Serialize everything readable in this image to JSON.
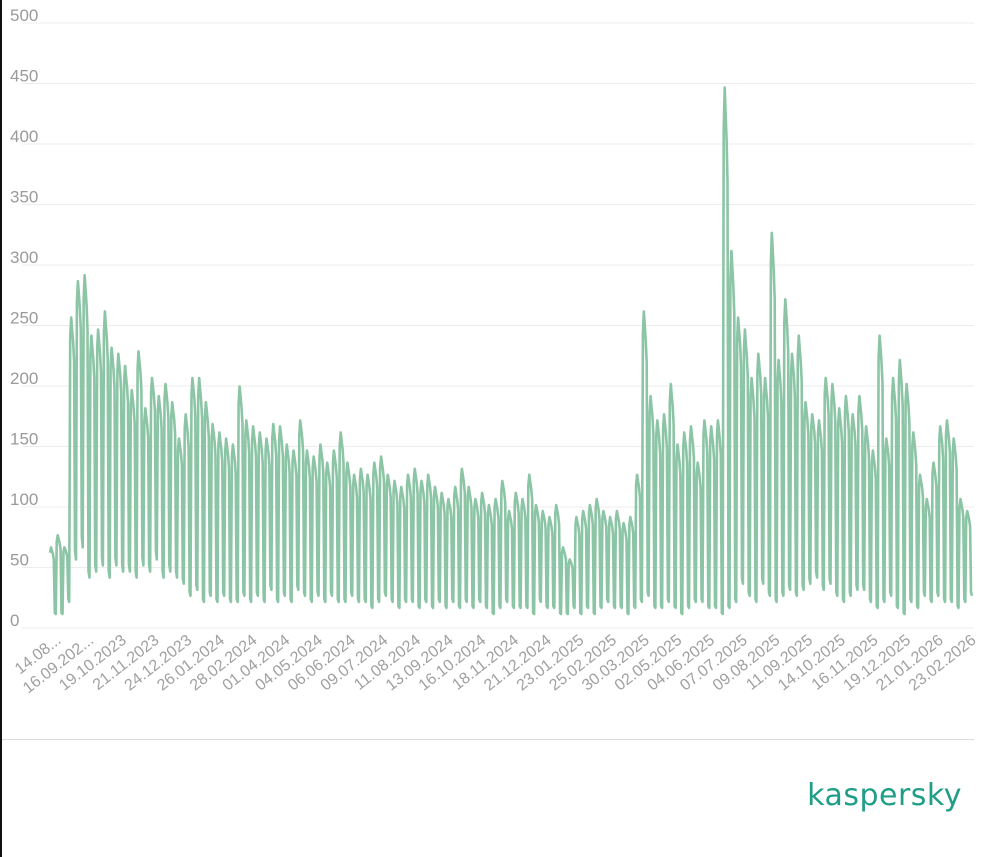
{
  "brand": {
    "logo_text": "kaspersky",
    "color": "#1f9e87"
  },
  "chart_data": {
    "type": "line",
    "title": "",
    "xlabel": "",
    "ylabel": "",
    "ylim": [
      0,
      500
    ],
    "y_ticks": [
      0,
      50,
      100,
      150,
      200,
      250,
      300,
      350,
      400,
      450,
      500
    ],
    "grid": true,
    "line_color": "#8cc5a5",
    "x_tick_labels": [
      "14.08...",
      "16.09.202...",
      "19.10.2023",
      "21.11.2023",
      "24.12.2023",
      "26.01.2024",
      "28.02.2024",
      "01.04.2024",
      "04.05.2024",
      "06.06.2024",
      "09.07.2024",
      "11.08.2024",
      "13.09.2024",
      "16.10.2024",
      "18.11.2024",
      "21.12.2024",
      "23.01.2025",
      "25.02.2025",
      "30.03.2025",
      "02.05.2025",
      "04.06.2025",
      "07.07.2025",
      "09.08.2025",
      "11.09.2025",
      "14.10.2025",
      "16.11.2025",
      "19.12.2025",
      "21.01.2026",
      "23.02.2026"
    ],
    "x_range": [
      "14.08.2023",
      "23.02.2026"
    ],
    "series": [
      {
        "weekly_peak": [
          60,
          70,
          60,
          250,
          280,
          285,
          235,
          240,
          255,
          225,
          220,
          210,
          190,
          222,
          175,
          200,
          185,
          195,
          180,
          150,
          170,
          200,
          200,
          180,
          162,
          155,
          150,
          145,
          193,
          165,
          160,
          155,
          150,
          162,
          160,
          145,
          140,
          165,
          140,
          135,
          145,
          130,
          140,
          155,
          130,
          120,
          125,
          120,
          130,
          135,
          120,
          115,
          110,
          120,
          125,
          115,
          120,
          110,
          105,
          100,
          110,
          125,
          110,
          100,
          105,
          95,
          100,
          115,
          90,
          105,
          100,
          120,
          95,
          90,
          85,
          95,
          60,
          50,
          85,
          90,
          95,
          100,
          90,
          85,
          90,
          80,
          85,
          120,
          255,
          185,
          165,
          170,
          195,
          145,
          155,
          160,
          130,
          165,
          160,
          165,
          440,
          305,
          250,
          240,
          200,
          220,
          200,
          320,
          215,
          265,
          220,
          235,
          180,
          170,
          165,
          200,
          195,
          175,
          185,
          170,
          185,
          160,
          140,
          235,
          150,
          200,
          215,
          195,
          155,
          120,
          100,
          130,
          160,
          165,
          150,
          100,
          90
        ],
        "weekly_low": [
          5,
          5,
          15,
          50,
          60,
          35,
          40,
          45,
          35,
          45,
          40,
          40,
          35,
          45,
          40,
          50,
          35,
          40,
          35,
          30,
          20,
          25,
          15,
          20,
          15,
          20,
          15,
          15,
          20,
          15,
          20,
          15,
          25,
          15,
          20,
          15,
          25,
          20,
          15,
          20,
          15,
          20,
          15,
          15,
          20,
          15,
          15,
          10,
          15,
          20,
          15,
          10,
          15,
          15,
          10,
          15,
          10,
          15,
          10,
          15,
          10,
          15,
          10,
          15,
          10,
          5,
          10,
          15,
          10,
          10,
          10,
          5,
          15,
          10,
          10,
          5,
          5,
          10,
          5,
          10,
          5,
          10,
          15,
          10,
          10,
          5,
          10,
          15,
          20,
          10,
          10,
          15,
          10,
          5,
          10,
          15,
          15,
          10,
          10,
          5,
          10,
          15,
          30,
          20,
          15,
          30,
          20,
          15,
          20,
          25,
          20,
          25,
          30,
          35,
          25,
          30,
          20,
          15,
          20,
          25,
          25,
          15,
          10,
          15,
          20,
          10,
          5,
          15,
          10,
          20,
          15,
          20,
          15,
          15,
          10,
          15,
          20
        ]
      }
    ]
  }
}
